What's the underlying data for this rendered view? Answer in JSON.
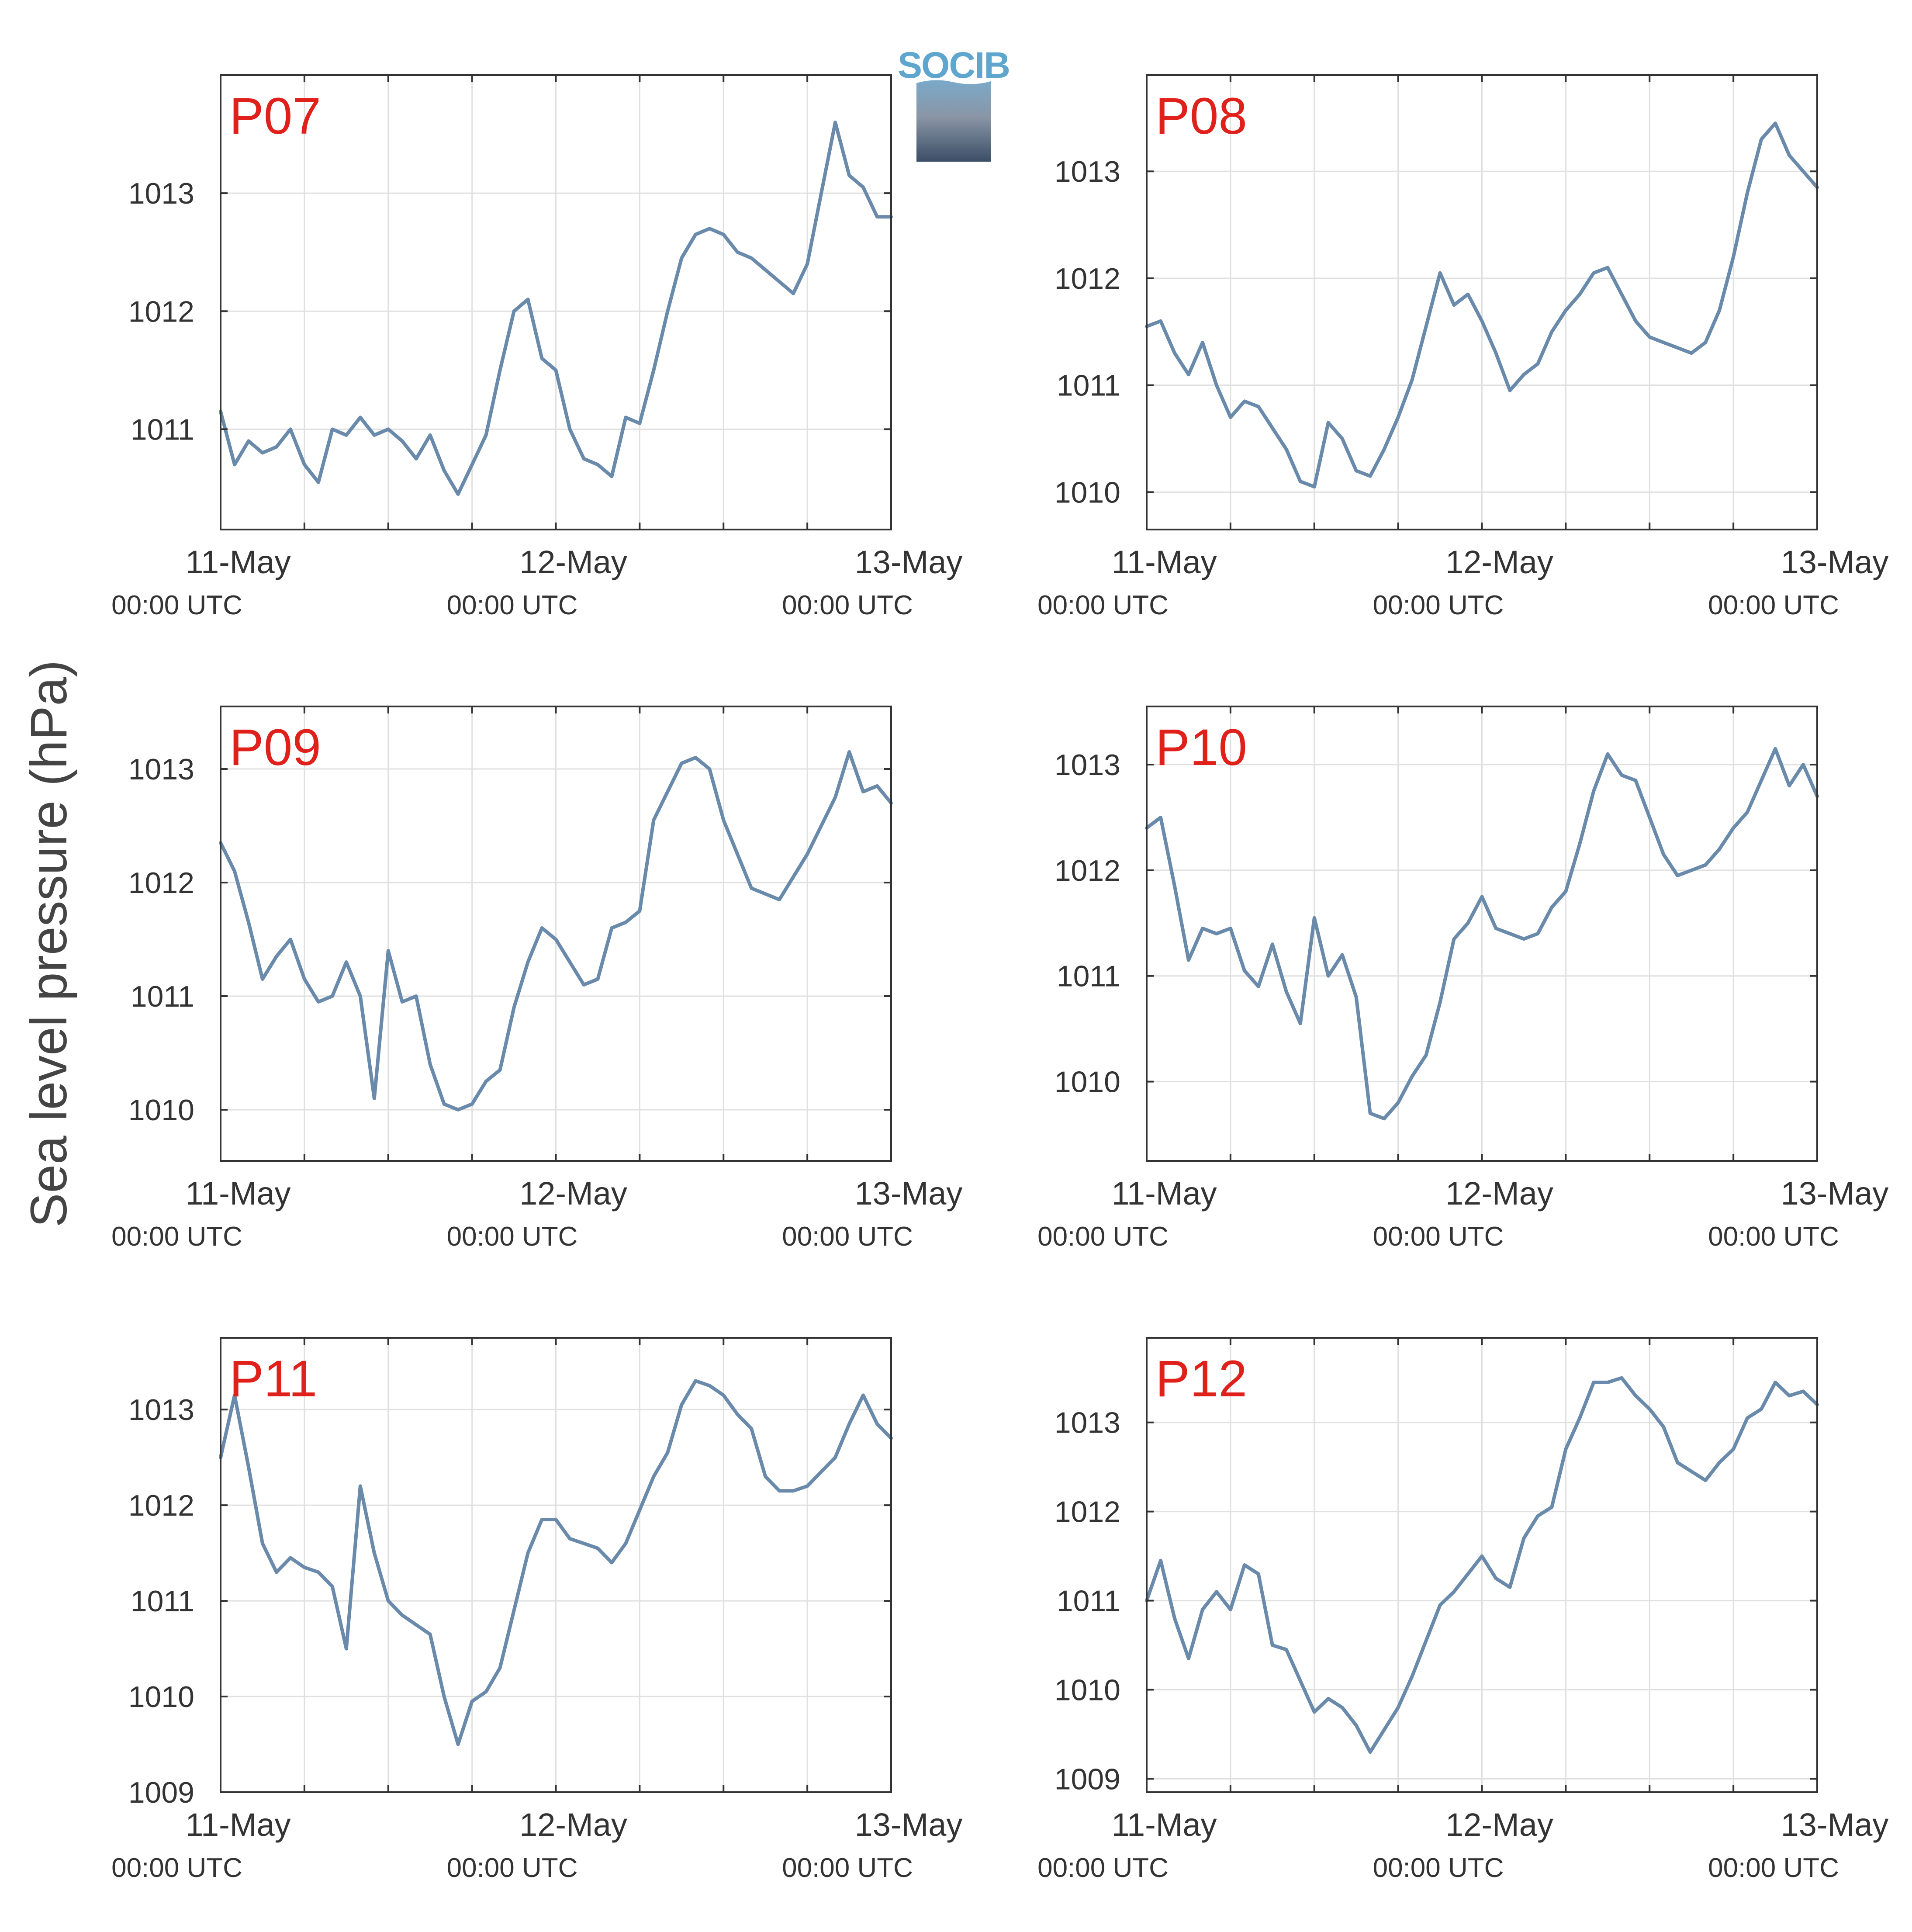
{
  "figure": {
    "ylabel": "Sea level pressure (hPa)",
    "colors": {
      "series": "#6a8aab",
      "grid": "#e0e0e0",
      "axis": "#333333",
      "panel_label": "#e0201b"
    }
  },
  "logo": {
    "text": "SOCIB"
  },
  "chart_data": [
    {
      "type": "line",
      "panel": "P07",
      "x_range": [
        "2023-05-11T00:00",
        "2023-05-13T00:00"
      ],
      "ylim": [
        1010.15,
        1014.0
      ],
      "yticks": [
        1011,
        1012,
        1013
      ],
      "xticks": [
        {
          "date": "11-May",
          "time": "00:00 UTC"
        },
        {
          "date": "12-May",
          "time": "00:00 UTC"
        },
        {
          "date": "13-May",
          "time": "00:00 UTC"
        }
      ],
      "grid": true,
      "x": [
        "2023-05-11T00:00",
        "2023-05-11T01:00",
        "2023-05-11T02:00",
        "2023-05-11T03:00",
        "2023-05-11T04:00",
        "2023-05-11T05:00",
        "2023-05-11T06:00",
        "2023-05-11T07:00",
        "2023-05-11T08:00",
        "2023-05-11T09:00",
        "2023-05-11T10:00",
        "2023-05-11T11:00",
        "2023-05-11T12:00",
        "2023-05-11T13:00",
        "2023-05-11T14:00",
        "2023-05-11T15:00",
        "2023-05-11T16:00",
        "2023-05-11T17:00",
        "2023-05-11T18:00",
        "2023-05-11T19:00",
        "2023-05-11T20:00",
        "2023-05-11T21:00",
        "2023-05-11T22:00",
        "2023-05-11T23:00",
        "2023-05-12T00:00",
        "2023-05-12T01:00",
        "2023-05-12T02:00",
        "2023-05-12T03:00",
        "2023-05-12T04:00",
        "2023-05-12T05:00",
        "2023-05-12T06:00",
        "2023-05-12T07:00",
        "2023-05-12T08:00",
        "2023-05-12T09:00",
        "2023-05-12T10:00",
        "2023-05-12T11:00",
        "2023-05-12T12:00",
        "2023-05-12T13:00",
        "2023-05-12T14:00",
        "2023-05-12T15:00",
        "2023-05-12T16:00",
        "2023-05-12T17:00",
        "2023-05-12T18:00",
        "2023-05-12T19:00",
        "2023-05-12T20:00",
        "2023-05-12T21:00",
        "2023-05-12T22:00",
        "2023-05-12T23:00",
        "2023-05-13T00:00"
      ],
      "y": [
        1011.15,
        1010.7,
        1010.9,
        1010.8,
        1010.85,
        1011.0,
        1010.7,
        1010.55,
        1011.0,
        1010.95,
        1011.1,
        1010.95,
        1011.0,
        1010.9,
        1010.75,
        1010.95,
        1010.65,
        1010.45,
        1010.7,
        1010.95,
        1011.5,
        1012.0,
        1012.1,
        1011.6,
        1011.5,
        1011.0,
        1010.75,
        1010.7,
        1010.6,
        1011.1,
        1011.05,
        1011.5,
        1012.0,
        1012.45,
        1012.65,
        1012.7,
        1012.65,
        1012.5,
        1012.45,
        1012.35,
        1012.25,
        1012.15,
        1012.4,
        1013.0,
        1013.6,
        1013.15,
        1013.05,
        1012.8,
        1012.8
      ]
    },
    {
      "type": "line",
      "panel": "P08",
      "x_range": [
        "2023-05-11T00:00",
        "2023-05-13T00:00"
      ],
      "ylim": [
        1009.65,
        1013.9
      ],
      "yticks": [
        1010,
        1011,
        1012,
        1013
      ],
      "xticks": [
        {
          "date": "11-May",
          "time": "00:00 UTC"
        },
        {
          "date": "12-May",
          "time": "00:00 UTC"
        },
        {
          "date": "13-May",
          "time": "00:00 UTC"
        }
      ],
      "grid": true,
      "x": [
        "2023-05-11T00:00",
        "2023-05-11T01:00",
        "2023-05-11T02:00",
        "2023-05-11T03:00",
        "2023-05-11T04:00",
        "2023-05-11T05:00",
        "2023-05-11T06:00",
        "2023-05-11T07:00",
        "2023-05-11T08:00",
        "2023-05-11T09:00",
        "2023-05-11T10:00",
        "2023-05-11T11:00",
        "2023-05-11T12:00",
        "2023-05-11T13:00",
        "2023-05-11T14:00",
        "2023-05-11T15:00",
        "2023-05-11T16:00",
        "2023-05-11T17:00",
        "2023-05-11T18:00",
        "2023-05-11T19:00",
        "2023-05-11T20:00",
        "2023-05-11T21:00",
        "2023-05-11T22:00",
        "2023-05-11T23:00",
        "2023-05-12T00:00",
        "2023-05-12T01:00",
        "2023-05-12T02:00",
        "2023-05-12T03:00",
        "2023-05-12T04:00",
        "2023-05-12T05:00",
        "2023-05-12T06:00",
        "2023-05-12T07:00",
        "2023-05-12T08:00",
        "2023-05-12T09:00",
        "2023-05-12T10:00",
        "2023-05-12T11:00",
        "2023-05-12T12:00",
        "2023-05-12T13:00",
        "2023-05-12T14:00",
        "2023-05-12T15:00",
        "2023-05-12T16:00",
        "2023-05-12T17:00",
        "2023-05-12T18:00",
        "2023-05-12T19:00",
        "2023-05-12T20:00",
        "2023-05-12T21:00",
        "2023-05-12T22:00",
        "2023-05-12T23:00",
        "2023-05-13T00:00"
      ],
      "y": [
        1011.55,
        1011.6,
        1011.3,
        1011.1,
        1011.4,
        1011.0,
        1010.7,
        1010.85,
        1010.8,
        1010.6,
        1010.4,
        1010.1,
        1010.05,
        1010.65,
        1010.5,
        1010.2,
        1010.15,
        1010.4,
        1010.7,
        1011.05,
        1011.55,
        1012.05,
        1011.75,
        1011.85,
        1011.6,
        1011.3,
        1010.95,
        1011.1,
        1011.2,
        1011.5,
        1011.7,
        1011.85,
        1012.05,
        1012.1,
        1011.85,
        1011.6,
        1011.45,
        1011.4,
        1011.35,
        1011.3,
        1011.4,
        1011.7,
        1012.2,
        1012.8,
        1013.3,
        1013.45,
        1013.15,
        1013.0,
        1012.85
      ]
    },
    {
      "type": "line",
      "panel": "P09",
      "x_range": [
        "2023-05-11T00:00",
        "2023-05-13T00:00"
      ],
      "ylim": [
        1009.55,
        1013.55
      ],
      "yticks": [
        1010,
        1011,
        1012,
        1013
      ],
      "xticks": [
        {
          "date": "11-May",
          "time": "00:00 UTC"
        },
        {
          "date": "12-May",
          "time": "00:00 UTC"
        },
        {
          "date": "13-May",
          "time": "00:00 UTC"
        }
      ],
      "grid": true,
      "x": [
        "2023-05-11T00:00",
        "2023-05-11T01:00",
        "2023-05-11T02:00",
        "2023-05-11T03:00",
        "2023-05-11T04:00",
        "2023-05-11T05:00",
        "2023-05-11T06:00",
        "2023-05-11T07:00",
        "2023-05-11T08:00",
        "2023-05-11T09:00",
        "2023-05-11T10:00",
        "2023-05-11T11:00",
        "2023-05-11T12:00",
        "2023-05-11T13:00",
        "2023-05-11T14:00",
        "2023-05-11T15:00",
        "2023-05-11T16:00",
        "2023-05-11T17:00",
        "2023-05-11T18:00",
        "2023-05-11T19:00",
        "2023-05-11T20:00",
        "2023-05-11T21:00",
        "2023-05-11T22:00",
        "2023-05-11T23:00",
        "2023-05-12T00:00",
        "2023-05-12T01:00",
        "2023-05-12T02:00",
        "2023-05-12T03:00",
        "2023-05-12T04:00",
        "2023-05-12T05:00",
        "2023-05-12T06:00",
        "2023-05-12T07:00",
        "2023-05-12T08:00",
        "2023-05-12T09:00",
        "2023-05-12T10:00",
        "2023-05-12T11:00",
        "2023-05-12T12:00",
        "2023-05-12T13:00",
        "2023-05-12T14:00",
        "2023-05-12T15:00",
        "2023-05-12T16:00",
        "2023-05-12T17:00",
        "2023-05-12T18:00",
        "2023-05-12T19:00",
        "2023-05-12T20:00",
        "2023-05-12T21:00",
        "2023-05-12T22:00",
        "2023-05-12T23:00",
        "2023-05-13T00:00"
      ],
      "y": [
        1012.35,
        1012.1,
        1011.65,
        1011.15,
        1011.35,
        1011.5,
        1011.15,
        1010.95,
        1011.0,
        1011.3,
        1011.0,
        1010.1,
        1011.4,
        1010.95,
        1011.0,
        1010.4,
        1010.05,
        1010.0,
        1010.05,
        1010.25,
        1010.35,
        1010.9,
        1011.3,
        1011.6,
        1011.5,
        1011.3,
        1011.1,
        1011.15,
        1011.6,
        1011.65,
        1011.75,
        1012.55,
        1012.8,
        1013.05,
        1013.1,
        1013.0,
        1012.55,
        1012.25,
        1011.95,
        1011.9,
        1011.85,
        1012.05,
        1012.25,
        1012.5,
        1012.75,
        1013.15,
        1012.8,
        1012.85,
        1012.7
      ]
    },
    {
      "type": "line",
      "panel": "P10",
      "x_range": [
        "2023-05-11T00:00",
        "2023-05-13T00:00"
      ],
      "ylim": [
        1009.25,
        1013.55
      ],
      "yticks": [
        1010,
        1011,
        1012,
        1013
      ],
      "xticks": [
        {
          "date": "11-May",
          "time": "00:00 UTC"
        },
        {
          "date": "12-May",
          "time": "00:00 UTC"
        },
        {
          "date": "13-May",
          "time": "00:00 UTC"
        }
      ],
      "grid": true,
      "x": [
        "2023-05-11T00:00",
        "2023-05-11T01:00",
        "2023-05-11T02:00",
        "2023-05-11T03:00",
        "2023-05-11T04:00",
        "2023-05-11T05:00",
        "2023-05-11T06:00",
        "2023-05-11T07:00",
        "2023-05-11T08:00",
        "2023-05-11T09:00",
        "2023-05-11T10:00",
        "2023-05-11T11:00",
        "2023-05-11T12:00",
        "2023-05-11T13:00",
        "2023-05-11T14:00",
        "2023-05-11T15:00",
        "2023-05-11T16:00",
        "2023-05-11T17:00",
        "2023-05-11T18:00",
        "2023-05-11T19:00",
        "2023-05-11T20:00",
        "2023-05-11T21:00",
        "2023-05-11T22:00",
        "2023-05-11T23:00",
        "2023-05-12T00:00",
        "2023-05-12T01:00",
        "2023-05-12T02:00",
        "2023-05-12T03:00",
        "2023-05-12T04:00",
        "2023-05-12T05:00",
        "2023-05-12T06:00",
        "2023-05-12T07:00",
        "2023-05-12T08:00",
        "2023-05-12T09:00",
        "2023-05-12T10:00",
        "2023-05-12T11:00",
        "2023-05-12T12:00",
        "2023-05-12T13:00",
        "2023-05-12T14:00",
        "2023-05-12T15:00",
        "2023-05-12T16:00",
        "2023-05-12T17:00",
        "2023-05-12T18:00",
        "2023-05-12T19:00",
        "2023-05-12T20:00",
        "2023-05-12T21:00",
        "2023-05-12T22:00",
        "2023-05-12T23:00",
        "2023-05-13T00:00"
      ],
      "y": [
        1012.4,
        1012.5,
        1011.85,
        1011.15,
        1011.45,
        1011.4,
        1011.45,
        1011.05,
        1010.9,
        1011.3,
        1010.85,
        1010.55,
        1011.55,
        1011.0,
        1011.2,
        1010.8,
        1009.7,
        1009.65,
        1009.8,
        1010.05,
        1010.25,
        1010.75,
        1011.35,
        1011.5,
        1011.75,
        1011.45,
        1011.4,
        1011.35,
        1011.4,
        1011.65,
        1011.8,
        1012.25,
        1012.75,
        1013.1,
        1012.9,
        1012.85,
        1012.5,
        1012.15,
        1011.95,
        1012.0,
        1012.05,
        1012.2,
        1012.4,
        1012.55,
        1012.85,
        1013.15,
        1012.8,
        1013.0,
        1012.7
      ]
    },
    {
      "type": "line",
      "panel": "P11",
      "x_range": [
        "2023-05-11T00:00",
        "2023-05-13T00:00"
      ],
      "ylim": [
        1009.0,
        1013.75
      ],
      "yticks": [
        1009,
        1010,
        1011,
        1012,
        1013
      ],
      "xticks": [
        {
          "date": "11-May",
          "time": "00:00 UTC"
        },
        {
          "date": "12-May",
          "time": "00:00 UTC"
        },
        {
          "date": "13-May",
          "time": "00:00 UTC"
        }
      ],
      "grid": true,
      "x": [
        "2023-05-11T00:00",
        "2023-05-11T01:00",
        "2023-05-11T02:00",
        "2023-05-11T03:00",
        "2023-05-11T04:00",
        "2023-05-11T05:00",
        "2023-05-11T06:00",
        "2023-05-11T07:00",
        "2023-05-11T08:00",
        "2023-05-11T09:00",
        "2023-05-11T10:00",
        "2023-05-11T11:00",
        "2023-05-11T12:00",
        "2023-05-11T13:00",
        "2023-05-11T14:00",
        "2023-05-11T15:00",
        "2023-05-11T16:00",
        "2023-05-11T17:00",
        "2023-05-11T18:00",
        "2023-05-11T19:00",
        "2023-05-11T20:00",
        "2023-05-11T21:00",
        "2023-05-11T22:00",
        "2023-05-11T23:00",
        "2023-05-12T00:00",
        "2023-05-12T01:00",
        "2023-05-12T02:00",
        "2023-05-12T03:00",
        "2023-05-12T04:00",
        "2023-05-12T05:00",
        "2023-05-12T06:00",
        "2023-05-12T07:00",
        "2023-05-12T08:00",
        "2023-05-12T09:00",
        "2023-05-12T10:00",
        "2023-05-12T11:00",
        "2023-05-12T12:00",
        "2023-05-12T13:00",
        "2023-05-12T14:00",
        "2023-05-12T15:00",
        "2023-05-12T16:00",
        "2023-05-12T17:00",
        "2023-05-12T18:00",
        "2023-05-12T19:00",
        "2023-05-12T20:00",
        "2023-05-12T21:00",
        "2023-05-12T22:00",
        "2023-05-12T23:00",
        "2023-05-13T00:00"
      ],
      "y": [
        1012.5,
        1013.15,
        1012.4,
        1011.6,
        1011.3,
        1011.45,
        1011.35,
        1011.3,
        1011.15,
        1010.5,
        1012.2,
        1011.5,
        1011.0,
        1010.85,
        1010.75,
        1010.65,
        1010.0,
        1009.5,
        1009.95,
        1010.05,
        1010.3,
        1010.9,
        1011.5,
        1011.85,
        1011.85,
        1011.65,
        1011.6,
        1011.55,
        1011.4,
        1011.6,
        1011.95,
        1012.3,
        1012.55,
        1013.05,
        1013.3,
        1013.25,
        1013.15,
        1012.95,
        1012.8,
        1012.3,
        1012.15,
        1012.15,
        1012.2,
        1012.35,
        1012.5,
        1012.85,
        1013.15,
        1012.85,
        1012.7
      ]
    },
    {
      "type": "line",
      "panel": "P12",
      "x_range": [
        "2023-05-11T00:00",
        "2023-05-13T00:00"
      ],
      "ylim": [
        1008.85,
        1013.95
      ],
      "yticks": [
        1009,
        1010,
        1011,
        1012,
        1013
      ],
      "xticks": [
        {
          "date": "11-May",
          "time": "00:00 UTC"
        },
        {
          "date": "12-May",
          "time": "00:00 UTC"
        },
        {
          "date": "13-May",
          "time": "00:00 UTC"
        }
      ],
      "grid": true,
      "x": [
        "2023-05-11T00:00",
        "2023-05-11T01:00",
        "2023-05-11T02:00",
        "2023-05-11T03:00",
        "2023-05-11T04:00",
        "2023-05-11T05:00",
        "2023-05-11T06:00",
        "2023-05-11T07:00",
        "2023-05-11T08:00",
        "2023-05-11T09:00",
        "2023-05-11T10:00",
        "2023-05-11T11:00",
        "2023-05-11T12:00",
        "2023-05-11T13:00",
        "2023-05-11T14:00",
        "2023-05-11T15:00",
        "2023-05-11T16:00",
        "2023-05-11T17:00",
        "2023-05-11T18:00",
        "2023-05-11T19:00",
        "2023-05-11T20:00",
        "2023-05-11T21:00",
        "2023-05-11T22:00",
        "2023-05-11T23:00",
        "2023-05-12T00:00",
        "2023-05-12T01:00",
        "2023-05-12T02:00",
        "2023-05-12T03:00",
        "2023-05-12T04:00",
        "2023-05-12T05:00",
        "2023-05-12T06:00",
        "2023-05-12T07:00",
        "2023-05-12T08:00",
        "2023-05-12T09:00",
        "2023-05-12T10:00",
        "2023-05-12T11:00",
        "2023-05-12T12:00",
        "2023-05-12T13:00",
        "2023-05-12T14:00",
        "2023-05-12T15:00",
        "2023-05-12T16:00",
        "2023-05-12T17:00",
        "2023-05-12T18:00",
        "2023-05-12T19:00",
        "2023-05-12T20:00",
        "2023-05-12T21:00",
        "2023-05-12T22:00",
        "2023-05-12T23:00",
        "2023-05-13T00:00"
      ],
      "y": [
        1011.0,
        1011.45,
        1010.8,
        1010.35,
        1010.9,
        1011.1,
        1010.9,
        1011.4,
        1011.3,
        1010.5,
        1010.45,
        1010.1,
        1009.75,
        1009.9,
        1009.8,
        1009.6,
        1009.3,
        1009.55,
        1009.8,
        1010.15,
        1010.55,
        1010.95,
        1011.1,
        1011.3,
        1011.5,
        1011.25,
        1011.15,
        1011.7,
        1011.95,
        1012.05,
        1012.7,
        1013.05,
        1013.45,
        1013.45,
        1013.5,
        1013.3,
        1013.15,
        1012.95,
        1012.55,
        1012.45,
        1012.35,
        1012.55,
        1012.7,
        1013.05,
        1013.15,
        1013.45,
        1013.3,
        1013.35,
        1013.2
      ]
    }
  ]
}
